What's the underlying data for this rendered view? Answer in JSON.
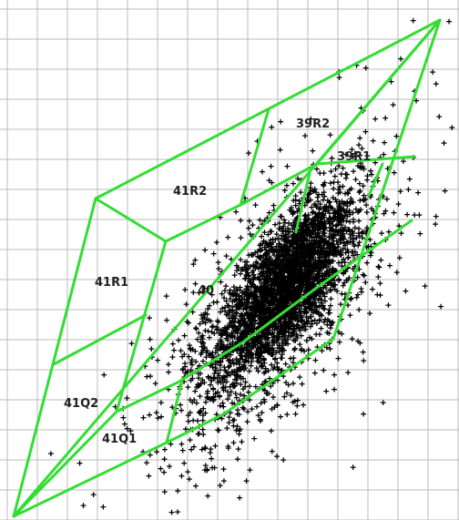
{
  "chart_data": {
    "type": "scatter",
    "marker": "+",
    "marker_color": "#000000",
    "boundary_color": "#33dd33",
    "grid": true,
    "grid_color": "#bbbbbb",
    "regions": [
      {
        "label": "39R2"
      },
      {
        "label": "39R1"
      },
      {
        "label": "41R2"
      },
      {
        "label": "41R1"
      },
      {
        "label": "40"
      },
      {
        "label": "41Q2"
      },
      {
        "label": "41Q1"
      }
    ],
    "clusters": [
      {
        "mean": [
          315,
          315
        ],
        "sd_along": 58,
        "sd_across": 22,
        "count": 2600
      },
      {
        "mean": [
          300,
          350
        ],
        "sd_along": 95,
        "sd_across": 40,
        "count": 900
      },
      {
        "mean": [
          320,
          320
        ],
        "sd_along": 170,
        "sd_across": 60,
        "count": 160
      }
    ],
    "outliers": [
      [
        499,
        405
      ],
      [
        500,
        270
      ],
      [
        484,
        340
      ],
      [
        500,
        105
      ],
      [
        233,
        517
      ],
      [
        232,
        507
      ],
      [
        210,
        497
      ],
      [
        399,
        458
      ],
      [
        183,
        355
      ],
      [
        185,
        412
      ]
    ]
  }
}
